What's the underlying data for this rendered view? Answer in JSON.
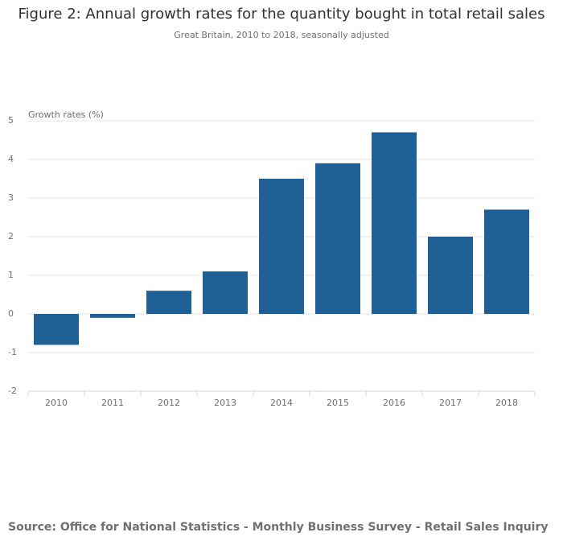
{
  "chart_data": {
    "type": "bar",
    "title": "Figure 2: Annual growth rates for the quantity bought in total retail sales",
    "subtitle": "Great Britain, 2010 to 2018, seasonally adjusted",
    "y_label": "Growth rates (%)",
    "categories": [
      "2010",
      "2011",
      "2012",
      "2013",
      "2014",
      "2015",
      "2016",
      "2017",
      "2018"
    ],
    "values": [
      -0.8,
      -0.1,
      0.6,
      1.1,
      3.5,
      3.9,
      4.7,
      2.0,
      2.7
    ],
    "color": "#206095",
    "ylim": [
      -2,
      5
    ],
    "yticks": [
      -2,
      -1,
      0,
      1,
      2,
      3,
      4,
      5
    ],
    "grid": true,
    "source": "Source: Office for National Statistics - Monthly Business Survey - Retail Sales Inquiry"
  }
}
